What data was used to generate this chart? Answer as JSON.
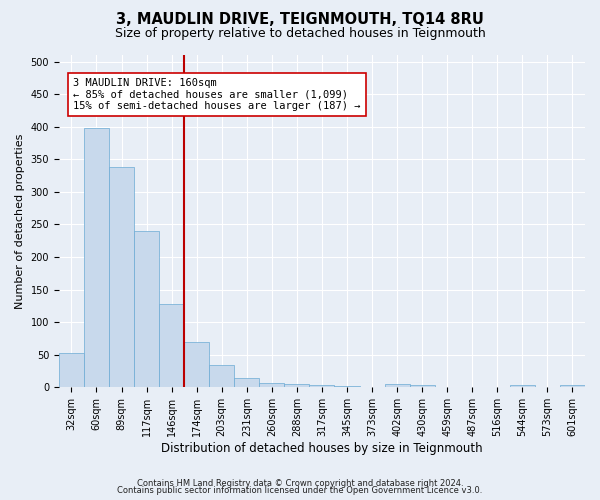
{
  "title": "3, MAUDLIN DRIVE, TEIGNMOUTH, TQ14 8RU",
  "subtitle": "Size of property relative to detached houses in Teignmouth",
  "xlabel": "Distribution of detached houses by size in Teignmouth",
  "ylabel": "Number of detached properties",
  "bar_values": [
    52,
    398,
    338,
    240,
    128,
    70,
    35,
    15,
    7,
    5,
    3,
    2,
    1,
    5,
    3,
    1,
    0,
    0,
    3,
    0,
    3
  ],
  "bar_labels": [
    "32sqm",
    "60sqm",
    "89sqm",
    "117sqm",
    "146sqm",
    "174sqm",
    "203sqm",
    "231sqm",
    "260sqm",
    "288sqm",
    "317sqm",
    "345sqm",
    "373sqm",
    "402sqm",
    "430sqm",
    "459sqm",
    "487sqm",
    "516sqm",
    "544sqm",
    "573sqm",
    "601sqm"
  ],
  "bar_color": "#c8d9ec",
  "bar_edge_color": "#6aaad4",
  "ylim_max": 510,
  "yticks": [
    0,
    50,
    100,
    150,
    200,
    250,
    300,
    350,
    400,
    450,
    500
  ],
  "red_line_x": 4.5,
  "red_line_color": "#bb0000",
  "annotation_line1": "3 MAUDLIN DRIVE: 160sqm",
  "annotation_line2": "← 85% of detached houses are smaller (1,099)",
  "annotation_line3": "15% of semi-detached houses are larger (187) →",
  "annotation_box_facecolor": "#ffffff",
  "annotation_box_edgecolor": "#cc0000",
  "background_color": "#e8eef6",
  "plot_bg_color": "#e8eef6",
  "grid_color": "#ffffff",
  "footer_line1": "Contains HM Land Registry data © Crown copyright and database right 2024.",
  "footer_line2": "Contains public sector information licensed under the Open Government Licence v3.0.",
  "title_fontsize": 10.5,
  "subtitle_fontsize": 9,
  "ylabel_fontsize": 8,
  "xlabel_fontsize": 8.5,
  "tick_fontsize": 7,
  "annotation_fontsize": 7.5,
  "footer_fontsize": 6
}
